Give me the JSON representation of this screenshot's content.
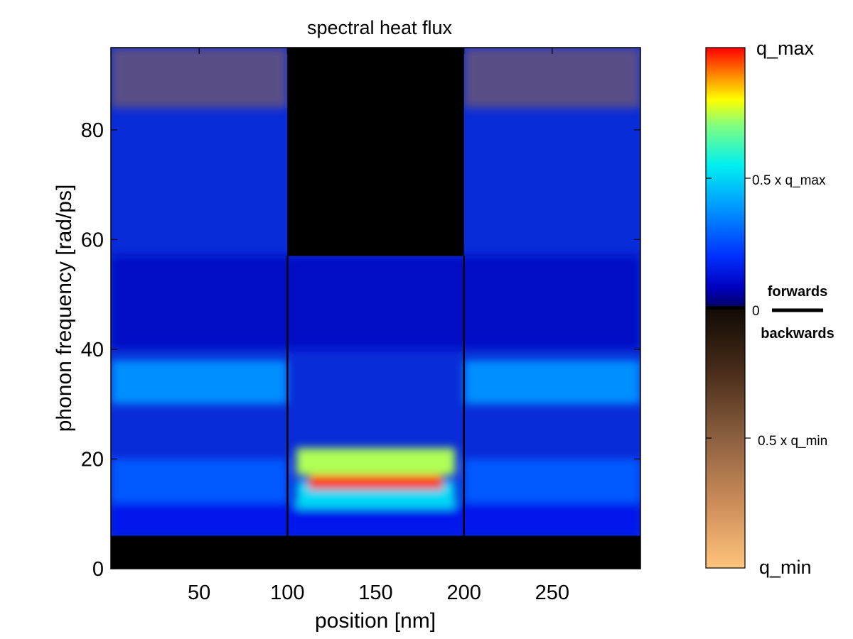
{
  "chart_data": {
    "type": "heatmap",
    "title": "spectral heat flux",
    "xlabel": "position [nm]",
    "ylabel": "phonon frequency [rad/ps]",
    "xlim": [
      0,
      300
    ],
    "ylim": [
      0,
      95
    ],
    "xticks": [
      50,
      100,
      150,
      200,
      250
    ],
    "yticks": [
      0,
      20,
      40,
      60,
      80
    ],
    "region_boundaries_x": [
      100,
      200
    ],
    "grid": false,
    "features": [
      {
        "x": [
          0,
          300
        ],
        "y": [
          0,
          6
        ],
        "level": "zero"
      },
      {
        "x": [
          100,
          200
        ],
        "y": [
          57,
          95
        ],
        "level": "zero"
      },
      {
        "x": [
          0,
          300
        ],
        "y": [
          6,
          12
        ],
        "level": 0.15
      },
      {
        "x": [
          0,
          100
        ],
        "y": [
          12,
          20
        ],
        "level": 0.3
      },
      {
        "x": [
          200,
          300
        ],
        "y": [
          12,
          20
        ],
        "level": 0.3
      },
      {
        "x": [
          0,
          100
        ],
        "y": [
          30,
          38
        ],
        "level": 0.4
      },
      {
        "x": [
          200,
          300
        ],
        "y": [
          30,
          38
        ],
        "level": 0.4
      },
      {
        "x": [
          105,
          195
        ],
        "y": [
          11,
          16
        ],
        "level": 0.55
      },
      {
        "x": [
          105,
          195
        ],
        "y": [
          17,
          22
        ],
        "level": 0.75
      },
      {
        "x": [
          112,
          188
        ],
        "y": [
          14.5,
          17
        ],
        "level": 0.98
      },
      {
        "x": [
          0,
          300
        ],
        "y": [
          40,
          57
        ],
        "level": 0.1
      },
      {
        "x": [
          0,
          100
        ],
        "y": [
          84,
          95
        ],
        "level": "negative"
      },
      {
        "x": [
          200,
          300
        ],
        "y": [
          84,
          95
        ],
        "level": "negative"
      }
    ],
    "colorbar": {
      "label_top": "q_max",
      "label_mid_top": "0.5 x q_max",
      "label_zero": "0",
      "label_mid_bottom": "0.5 x q_min",
      "label_bottom": "q_min",
      "forwards_label": "forwards",
      "backwards_label": "backwards",
      "positive_colors": [
        "#000066",
        "#0000ff",
        "#00a0ff",
        "#00ffff",
        "#80ff80",
        "#ffff00",
        "#ff8000",
        "#ff0000"
      ],
      "negative_colors": [
        "#1a1008",
        "#5a3a22",
        "#9a6a44",
        "#d0945e",
        "#ffc07a"
      ]
    }
  }
}
